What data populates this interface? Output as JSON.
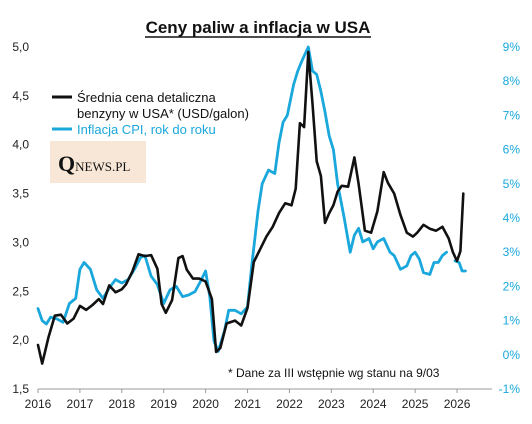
{
  "chart_data": {
    "type": "line",
    "title": "Ceny paliw a inflacja w USA",
    "note": "* Dane za III wstępnie wg stanu na 9/03",
    "logo": {
      "q": "Q",
      "rest": "NEWS.PL"
    },
    "x_ticks": [
      "2016",
      "2017",
      "2018",
      "2019",
      "2020",
      "2021",
      "2022",
      "2023",
      "2024",
      "2025",
      "2026"
    ],
    "x_range": [
      2016.0,
      2026.5
    ],
    "y_left": {
      "ticks": [
        "1,5",
        "2,0",
        "2,5",
        "3,0",
        "3,5",
        "4,0",
        "4,5",
        "5,0"
      ],
      "range": [
        1.5,
        5.0
      ]
    },
    "y_right": {
      "ticks": [
        "-1%",
        "0%",
        "1%",
        "2%",
        "3%",
        "4%",
        "5%",
        "6%",
        "7%",
        "8%",
        "9%"
      ],
      "range": [
        -1,
        9
      ]
    },
    "grid": false,
    "legend_position": "top-left",
    "series": [
      {
        "name": "Średnia cena detaliczna benzyny w USA* (USD/galon)",
        "legend_lines": [
          "Średnia cena detaliczna",
          "benzyny w USA* (USD/galon)"
        ],
        "color": "#111111",
        "axis": "left",
        "points": [
          [
            2016.0,
            1.95
          ],
          [
            2016.1,
            1.76
          ],
          [
            2016.25,
            2.03
          ],
          [
            2016.4,
            2.25
          ],
          [
            2016.55,
            2.26
          ],
          [
            2016.7,
            2.17
          ],
          [
            2016.85,
            2.22
          ],
          [
            2017.0,
            2.35
          ],
          [
            2017.15,
            2.31
          ],
          [
            2017.3,
            2.36
          ],
          [
            2017.45,
            2.42
          ],
          [
            2017.55,
            2.37
          ],
          [
            2017.7,
            2.56
          ],
          [
            2017.85,
            2.49
          ],
          [
            2018.0,
            2.52
          ],
          [
            2018.1,
            2.57
          ],
          [
            2018.25,
            2.7
          ],
          [
            2018.4,
            2.88
          ],
          [
            2018.55,
            2.86
          ],
          [
            2018.7,
            2.87
          ],
          [
            2018.85,
            2.73
          ],
          [
            2018.95,
            2.37
          ],
          [
            2019.05,
            2.28
          ],
          [
            2019.2,
            2.41
          ],
          [
            2019.35,
            2.84
          ],
          [
            2019.45,
            2.86
          ],
          [
            2019.55,
            2.72
          ],
          [
            2019.7,
            2.63
          ],
          [
            2019.85,
            2.63
          ],
          [
            2020.0,
            2.6
          ],
          [
            2020.15,
            2.42
          ],
          [
            2020.25,
            1.88
          ],
          [
            2020.35,
            1.92
          ],
          [
            2020.5,
            2.17
          ],
          [
            2020.7,
            2.2
          ],
          [
            2020.85,
            2.15
          ],
          [
            2021.0,
            2.33
          ],
          [
            2021.15,
            2.8
          ],
          [
            2021.3,
            2.93
          ],
          [
            2021.45,
            3.06
          ],
          [
            2021.6,
            3.16
          ],
          [
            2021.75,
            3.3
          ],
          [
            2021.9,
            3.4
          ],
          [
            2022.05,
            3.38
          ],
          [
            2022.15,
            3.55
          ],
          [
            2022.25,
            4.22
          ],
          [
            2022.35,
            4.18
          ],
          [
            2022.45,
            4.95
          ],
          [
            2022.55,
            4.42
          ],
          [
            2022.65,
            3.83
          ],
          [
            2022.75,
            3.68
          ],
          [
            2022.85,
            3.2
          ],
          [
            2022.95,
            3.3
          ],
          [
            2023.05,
            3.38
          ],
          [
            2023.15,
            3.52
          ],
          [
            2023.25,
            3.58
          ],
          [
            2023.4,
            3.57
          ],
          [
            2023.55,
            3.87
          ],
          [
            2023.65,
            3.6
          ],
          [
            2023.8,
            3.12
          ],
          [
            2023.95,
            3.1
          ],
          [
            2024.1,
            3.32
          ],
          [
            2024.25,
            3.72
          ],
          [
            2024.35,
            3.61
          ],
          [
            2024.5,
            3.5
          ],
          [
            2024.65,
            3.28
          ],
          [
            2024.8,
            3.1
          ],
          [
            2024.95,
            3.06
          ],
          [
            2025.05,
            3.1
          ],
          [
            2025.2,
            3.18
          ],
          [
            2025.35,
            3.14
          ],
          [
            2025.5,
            3.12
          ],
          [
            2025.65,
            3.16
          ],
          [
            2025.8,
            3.04
          ],
          [
            2025.9,
            2.9
          ],
          [
            2026.0,
            2.81
          ],
          [
            2026.08,
            2.91
          ],
          [
            2026.15,
            3.5
          ]
        ]
      },
      {
        "name": "Inflacja CPI, rok do roku",
        "legend_lines": [
          "Inflacja CPI, rok do roku"
        ],
        "color": "#19a7dc",
        "axis": "right",
        "segments": [
          [
            [
              2016.0,
              1.35
            ],
            [
              2016.1,
              1.0
            ],
            [
              2016.2,
              0.9
            ],
            [
              2016.3,
              1.1
            ],
            [
              2016.45,
              1.05
            ],
            [
              2016.6,
              0.95
            ],
            [
              2016.75,
              1.5
            ],
            [
              2016.9,
              1.65
            ],
            [
              2017.0,
              2.5
            ],
            [
              2017.1,
              2.7
            ],
            [
              2017.25,
              2.5
            ],
            [
              2017.4,
              1.9
            ],
            [
              2017.55,
              1.65
            ],
            [
              2017.7,
              1.95
            ],
            [
              2017.85,
              2.2
            ],
            [
              2018.0,
              2.1
            ],
            [
              2018.15,
              2.2
            ],
            [
              2018.3,
              2.5
            ],
            [
              2018.45,
              2.85
            ],
            [
              2018.55,
              2.9
            ],
            [
              2018.7,
              2.3
            ],
            [
              2018.85,
              2.05
            ],
            [
              2019.0,
              1.5
            ],
            [
              2019.15,
              1.9
            ],
            [
              2019.3,
              2.0
            ],
            [
              2019.45,
              1.7
            ],
            [
              2019.6,
              1.75
            ],
            [
              2019.75,
              1.85
            ],
            [
              2019.9,
              2.2
            ],
            [
              2020.0,
              2.45
            ],
            [
              2020.1,
              1.7
            ],
            [
              2020.2,
              0.4
            ],
            [
              2020.3,
              0.1
            ],
            [
              2020.45,
              0.7
            ],
            [
              2020.55,
              1.3
            ],
            [
              2020.7,
              1.3
            ],
            [
              2020.85,
              1.2
            ],
            [
              2021.0,
              1.4
            ],
            [
              2021.1,
              2.6
            ],
            [
              2021.25,
              4.2
            ],
            [
              2021.35,
              5.0
            ],
            [
              2021.5,
              5.4
            ],
            [
              2021.65,
              5.3
            ],
            [
              2021.75,
              6.2
            ],
            [
              2021.85,
              6.8
            ],
            [
              2021.95,
              7.0
            ],
            [
              2022.1,
              7.9
            ],
            [
              2022.2,
              8.3
            ],
            [
              2022.3,
              8.6
            ],
            [
              2022.45,
              9.0
            ],
            [
              2022.55,
              8.3
            ],
            [
              2022.65,
              8.2
            ],
            [
              2022.75,
              7.7
            ],
            [
              2022.85,
              7.1
            ],
            [
              2022.95,
              6.4
            ],
            [
              2023.05,
              6.0
            ],
            [
              2023.15,
              5.0
            ],
            [
              2023.3,
              4.05
            ],
            [
              2023.45,
              3.0
            ],
            [
              2023.55,
              3.5
            ],
            [
              2023.65,
              3.7
            ],
            [
              2023.75,
              3.3
            ],
            [
              2023.9,
              3.4
            ],
            [
              2024.0,
              3.1
            ],
            [
              2024.1,
              3.3
            ],
            [
              2024.25,
              3.4
            ],
            [
              2024.4,
              3.0
            ],
            [
              2024.5,
              2.9
            ],
            [
              2024.65,
              2.5
            ],
            [
              2024.8,
              2.6
            ],
            [
              2024.9,
              2.9
            ],
            [
              2025.0,
              3.0
            ],
            [
              2025.1,
              2.8
            ],
            [
              2025.2,
              2.4
            ],
            [
              2025.35,
              2.35
            ],
            [
              2025.45,
              2.7
            ],
            [
              2025.55,
              2.7
            ],
            [
              2025.65,
              2.9
            ],
            [
              2025.75,
              3.0
            ]
          ],
          [
            [
              2025.95,
              2.75
            ],
            [
              2026.05,
              2.7
            ],
            [
              2026.12,
              2.45
            ],
            [
              2026.2,
              2.45
            ]
          ]
        ]
      }
    ]
  }
}
